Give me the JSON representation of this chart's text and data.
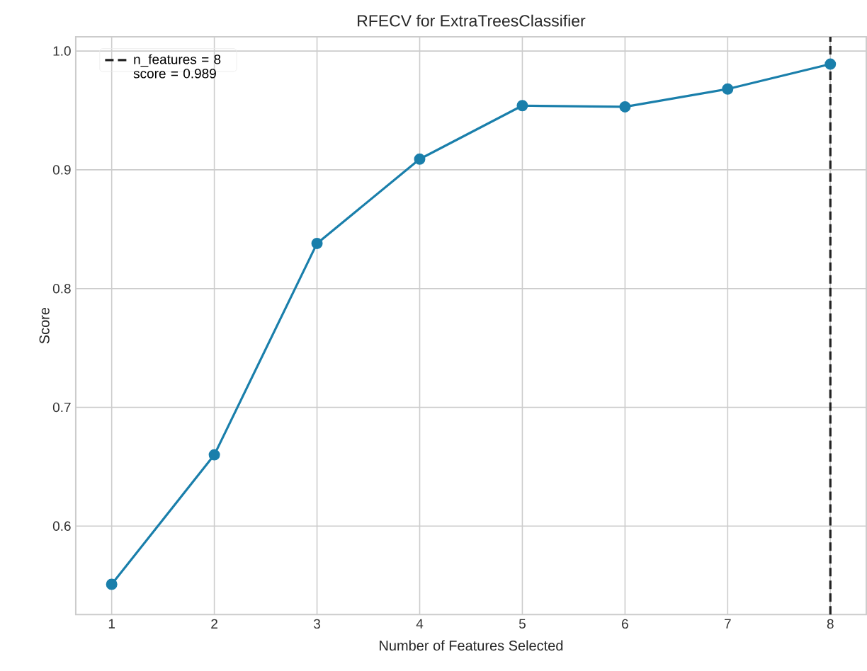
{
  "chart_data": {
    "type": "line",
    "title": "RFECV for ExtraTreesClassifier",
    "xlabel": "Number of Features Selected",
    "ylabel": "Score",
    "x": [
      1,
      2,
      3,
      4,
      5,
      6,
      7,
      8
    ],
    "series": [
      {
        "color": "#1a7fab",
        "values": [
          0.551,
          0.66,
          0.838,
          0.909,
          0.954,
          0.953,
          0.968,
          0.989
        ]
      }
    ],
    "xlim": [
      0.65,
      8.35
    ],
    "ylim": [
      0.5255,
      1.012
    ],
    "xticks": [
      1,
      2,
      3,
      4,
      5,
      6,
      7,
      8
    ],
    "yticks": [
      0.6,
      0.7,
      0.8,
      0.9,
      {
        "value": 1.0,
        "label": "1.0"
      }
    ],
    "ref_lines": [
      {
        "axis": "x",
        "value": 8,
        "label": "n_features = 8 score = 0.989",
        "color": "#222222",
        "line_style": "dashed"
      }
    ],
    "grid": true,
    "legend": "top left",
    "marker": "circle",
    "line_style": "solid"
  }
}
